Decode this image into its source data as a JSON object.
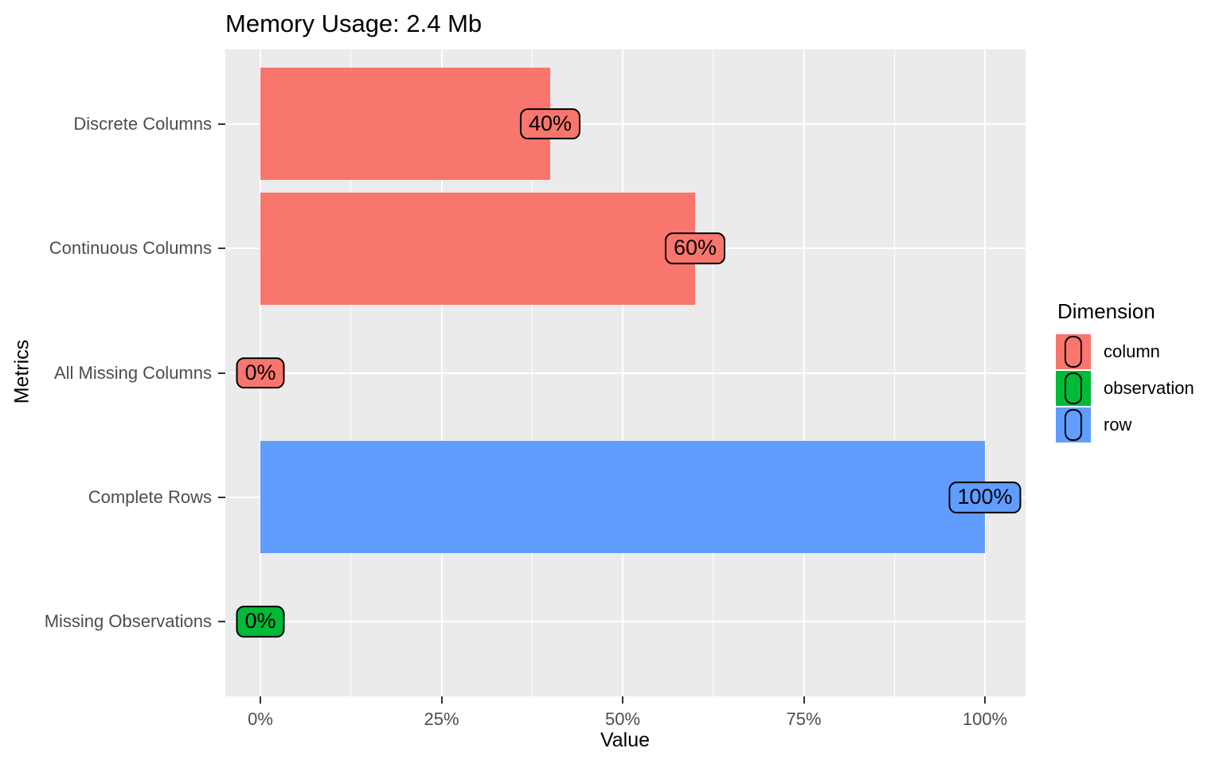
{
  "chart": {
    "title": "Memory Usage: 2.4 Mb",
    "xlabel": "Value",
    "ylabel": "Metrics",
    "legend_title": "Dimension"
  },
  "chart_data": {
    "type": "bar",
    "orientation": "horizontal",
    "title": "Memory Usage: 2.4 Mb",
    "xlabel": "Value",
    "ylabel": "Metrics",
    "xlim": [
      0,
      100
    ],
    "x_ticks": [
      {
        "value": 0,
        "label": "0%"
      },
      {
        "value": 25,
        "label": "25%"
      },
      {
        "value": 50,
        "label": "50%"
      },
      {
        "value": 75,
        "label": "75%"
      },
      {
        "value": 100,
        "label": "100%"
      }
    ],
    "x_minor_ticks": [
      12.5,
      37.5,
      62.5,
      87.5
    ],
    "grid": true,
    "rows": [
      {
        "metric": "Discrete Columns",
        "value": 40,
        "label": "40%",
        "dimension": "column"
      },
      {
        "metric": "Continuous Columns",
        "value": 60,
        "label": "60%",
        "dimension": "column"
      },
      {
        "metric": "All Missing Columns",
        "value": 0,
        "label": "0%",
        "dimension": "column"
      },
      {
        "metric": "Complete Rows",
        "value": 100,
        "label": "100%",
        "dimension": "row"
      },
      {
        "metric": "Missing Observations",
        "value": 0,
        "label": "0%",
        "dimension": "observation"
      }
    ],
    "legend": {
      "title": "Dimension",
      "position": "right",
      "entries": [
        {
          "label": "column",
          "color": "#F8766D"
        },
        {
          "label": "observation",
          "color": "#00BA38"
        },
        {
          "label": "row",
          "color": "#619CFF"
        }
      ]
    },
    "colors": {
      "column": "#F8766D",
      "observation": "#00BA38",
      "row": "#619CFF"
    },
    "panel_bg": "#EBEBEB",
    "grid_color": "#FFFFFF"
  }
}
